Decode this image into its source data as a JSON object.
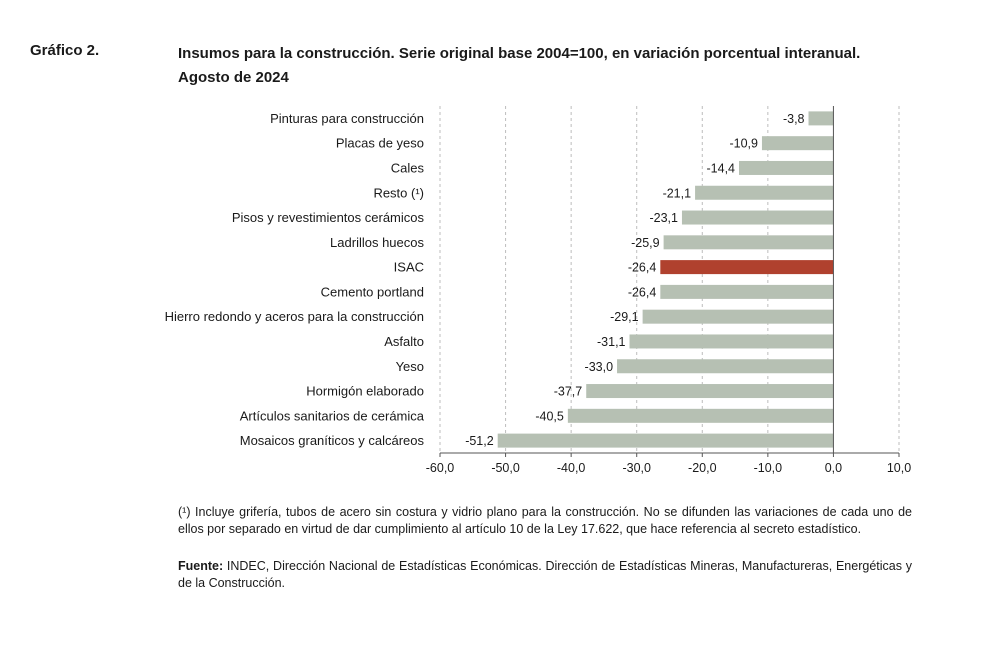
{
  "header": {
    "figure_number": "Gráfico 2.",
    "title_line1": "Insumos para la construcción. Serie original base 2004=100, en variación porcentual interanual.",
    "title_line2": "Agosto de 2024"
  },
  "chart_data": {
    "type": "bar",
    "orientation": "horizontal",
    "categories": [
      "Pinturas para construcción",
      "Placas de yeso",
      "Cales",
      "Resto (¹)",
      "Pisos y revestimientos cerámicos",
      "Ladrillos huecos",
      "ISAC",
      "Cemento portland",
      "Hierro redondo y aceros para la construcción",
      "Asfalto",
      "Yeso",
      "Hormigón elaborado",
      "Artículos sanitarios de cerámica",
      "Mosaicos graníticos y calcáreos"
    ],
    "values": [
      -3.8,
      -10.9,
      -14.4,
      -21.1,
      -23.1,
      -25.9,
      -26.4,
      -26.4,
      -29.1,
      -31.1,
      -33.0,
      -37.7,
      -40.5,
      -51.2
    ],
    "value_labels": [
      "-3,8",
      "-10,9",
      "-14,4",
      "-21,1",
      "-23,1",
      "-25,9",
      "-26,4",
      "-26,4",
      "-29,1",
      "-31,1",
      "-33,0",
      "-37,7",
      "-40,5",
      "-51,2"
    ],
    "highlight": "ISAC",
    "xlim": [
      -60,
      10
    ],
    "xticks": [
      -60,
      -50,
      -40,
      -30,
      -20,
      -10,
      0,
      10
    ],
    "xtick_labels": [
      "-60,0",
      "-50,0",
      "-40,0",
      "-30,0",
      "-20,0",
      "-10,0",
      "0,0",
      "10,0"
    ],
    "grid": "vertical dashed",
    "colors": {
      "bar": "#b6c0b3",
      "highlight": "#b0412e",
      "grid": "#bdbdbd",
      "axis": "#555555"
    }
  },
  "notes": {
    "footnote": "(¹) Incluye grifería, tubos de acero sin costura y vidrio plano para la construcción. No se difunden las variaciones de cada uno de ellos por separado en virtud de dar cumplimiento al artículo 10 de la Ley 17.622, que hace referencia al secreto estadístico.",
    "source_label": "Fuente:",
    "source_text": " INDEC, Dirección Nacional de Estadísticas Económicas. Dirección de Estadísticas Mineras, Manufactureras, Energéticas y de la Construcción."
  }
}
